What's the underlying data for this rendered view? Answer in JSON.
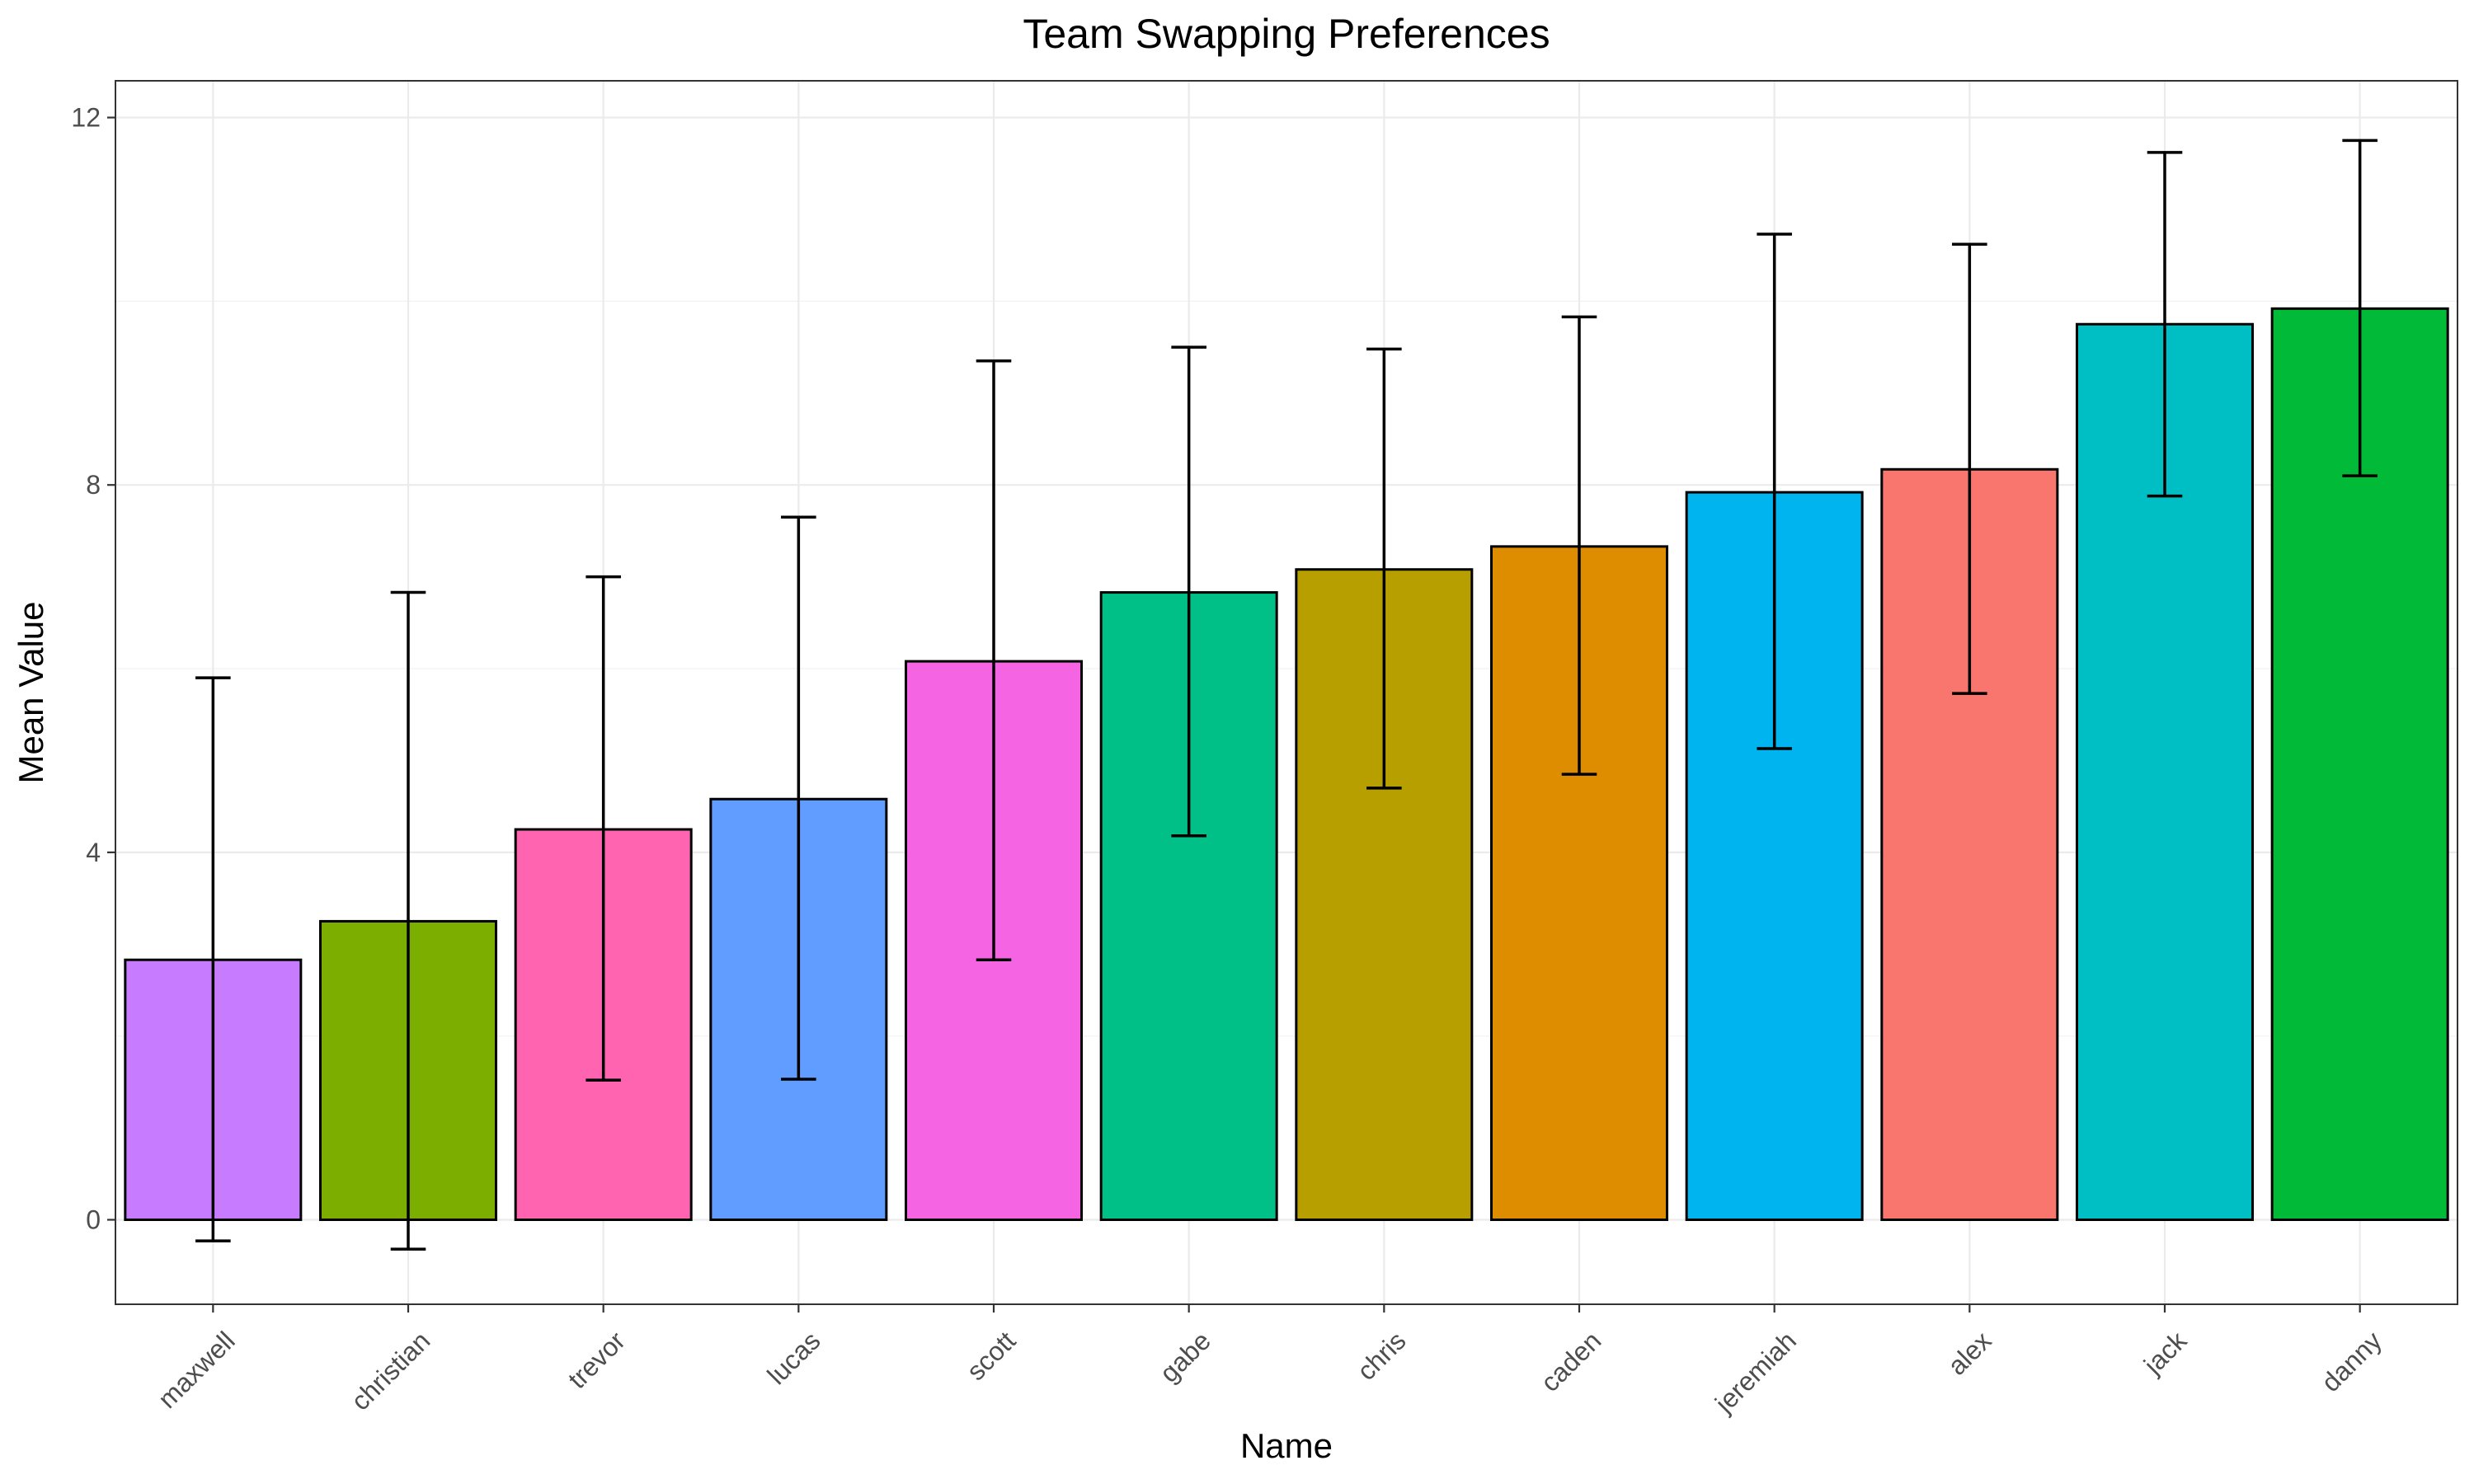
{
  "chart_data": {
    "type": "bar",
    "title": "Team Swapping Preferences",
    "xlabel": "Name",
    "ylabel": "Mean Value",
    "categories": [
      "maxwell",
      "christian",
      "trevor",
      "lucas",
      "scott",
      "gabe",
      "chris",
      "caden",
      "jeremiah",
      "alex",
      "jack",
      "danny"
    ],
    "values": [
      2.83,
      3.25,
      4.25,
      4.58,
      6.08,
      6.83,
      7.08,
      7.33,
      7.92,
      8.17,
      9.75,
      9.92
    ],
    "error_lower": [
      -0.23,
      -0.32,
      1.52,
      1.53,
      2.83,
      4.18,
      4.7,
      4.85,
      5.13,
      5.73,
      7.88,
      8.1
    ],
    "error_upper": [
      5.9,
      6.83,
      7.0,
      7.65,
      9.35,
      9.5,
      9.48,
      9.83,
      10.73,
      10.62,
      11.62,
      11.75
    ],
    "colors": [
      "#C77CFF",
      "#7CAE00",
      "#FF64B0",
      "#619CFF",
      "#F564E3",
      "#00BF87",
      "#B79F00",
      "#DE8C00",
      "#00B4EF",
      "#F8766D",
      "#00BFC4",
      "#00BA38"
    ],
    "ylim": [
      -0.92,
      12.4
    ],
    "yticks": [
      0,
      4,
      8,
      12
    ],
    "grid": true,
    "legend": "none"
  }
}
